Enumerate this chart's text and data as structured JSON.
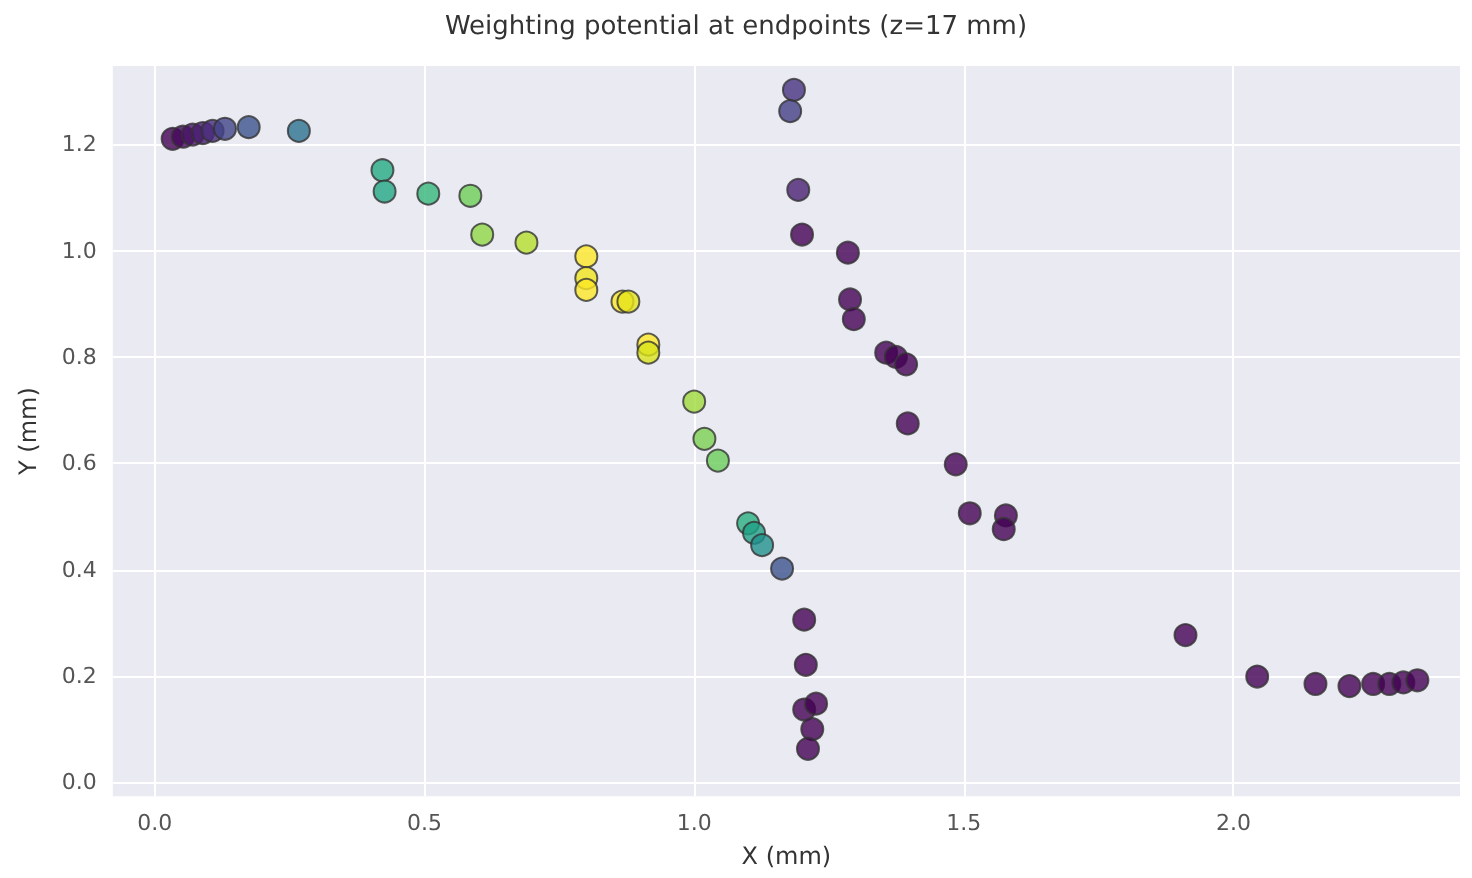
{
  "chart_data": {
    "type": "scatter",
    "title": "Weighting potential at endpoints (z=17 mm)",
    "xlabel": "X (mm)",
    "ylabel": "Y (mm)",
    "x": [
      0.033,
      0.052,
      0.07,
      0.089,
      0.107,
      0.13,
      0.174,
      0.267,
      0.422,
      0.426,
      0.507,
      0.585,
      0.607,
      0.689,
      0.8,
      0.8,
      0.8,
      0.867,
      0.878,
      0.915,
      0.915,
      1.0,
      1.019,
      1.044,
      1.1,
      1.111,
      1.126,
      1.163,
      1.204,
      1.207,
      1.204,
      1.226,
      1.219,
      1.211,
      1.185,
      1.178,
      1.193,
      1.2,
      1.285,
      1.289,
      1.296,
      1.356,
      1.374,
      1.393,
      1.396,
      1.485,
      1.511,
      1.578,
      1.574,
      1.911,
      2.044,
      2.152,
      2.215,
      2.259,
      2.289,
      2.315,
      2.341
    ],
    "values": [
      1.21,
      1.214,
      1.218,
      1.221,
      1.225,
      1.229,
      1.232,
      1.225,
      1.151,
      1.111,
      1.107,
      1.103,
      1.03,
      1.015,
      0.989,
      0.948,
      0.926,
      0.904,
      0.904,
      0.823,
      0.808,
      0.716,
      0.646,
      0.605,
      0.487,
      0.469,
      0.446,
      0.402,
      0.306,
      0.221,
      0.137,
      0.148,
      0.1,
      0.063,
      1.302,
      1.262,
      1.114,
      1.03,
      0.996,
      0.908,
      0.871,
      0.808,
      0.8,
      0.786,
      0.675,
      0.598,
      0.506,
      0.502,
      0.476,
      0.277,
      0.199,
      0.185,
      0.181,
      0.185,
      0.185,
      0.188,
      0.192
    ],
    "colors": [
      "#440154",
      "#46085c",
      "#471365",
      "#481d6f",
      "#472a7a",
      "#414487",
      "#3b528b",
      "#2c728e",
      "#25ab82",
      "#22a884",
      "#35b779",
      "#6ece58",
      "#90d743",
      "#b5de2b",
      "#fde725",
      "#f1e51d",
      "#fde725",
      "#fde725",
      "#e5e419",
      "#fde725",
      "#d8e219",
      "#a0da39",
      "#7ad151",
      "#6ccd5a",
      "#29af7f",
      "#1fa187",
      "#21918c",
      "#3b528b",
      "#440154",
      "#440154",
      "#440154",
      "#440154",
      "#440154",
      "#440154",
      "#46327e",
      "#433e85",
      "#481f70",
      "#440154",
      "#440154",
      "#440154",
      "#440154",
      "#440154",
      "#440154",
      "#440154",
      "#440154",
      "#440154",
      "#440154",
      "#440154",
      "#440154",
      "#440154",
      "#440154",
      "#440154",
      "#440154",
      "#440154",
      "#440154",
      "#440154",
      "#440154"
    ],
    "xlim": [
      -0.078,
      2.42
    ],
    "ylim": [
      -0.026,
      1.347
    ],
    "xticks": [
      {
        "value": 0,
        "label": "0.0"
      },
      {
        "value": 0.5,
        "label": "0.5"
      },
      {
        "value": 1,
        "label": "1.0"
      },
      {
        "value": 1.5,
        "label": "1.5"
      },
      {
        "value": 2,
        "label": "2.0"
      }
    ],
    "yticks": [
      {
        "value": 0,
        "label": "0.0"
      },
      {
        "value": 0.2,
        "label": "0.2"
      },
      {
        "value": 0.4,
        "label": "0.4"
      },
      {
        "value": 0.6,
        "label": "0.6"
      },
      {
        "value": 0.8,
        "label": "0.8"
      },
      {
        "value": 1,
        "label": "1.0"
      },
      {
        "value": 1.2,
        "label": "1.2"
      }
    ],
    "grid": true,
    "marker": "circle"
  }
}
